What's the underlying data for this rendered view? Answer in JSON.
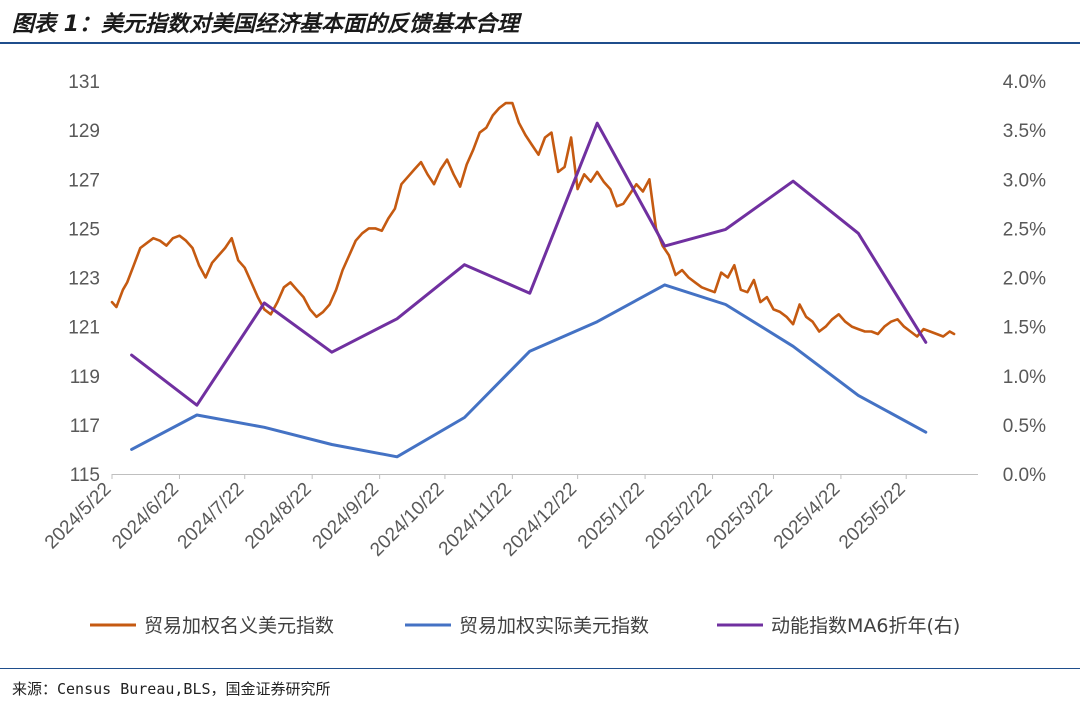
{
  "title": "图表 1：美元指数对美国经济基本面的反馈基本合理",
  "source": "来源：Census Bureau,BLS，国金证券研究所",
  "chart_data": {
    "type": "line",
    "left_axis": {
      "ticks": [
        "115",
        "117",
        "119",
        "121",
        "123",
        "125",
        "127",
        "129",
        "131"
      ],
      "min": 115,
      "max": 131
    },
    "right_axis": {
      "ticks": [
        "0.0%",
        "0.5%",
        "1.0%",
        "1.5%",
        "2.0%",
        "2.5%",
        "3.0%",
        "3.5%",
        "4.0%"
      ],
      "min": 0,
      "max": 4
    },
    "x_labels": [
      "2024/5/22",
      "2024/6/22",
      "2024/7/22",
      "2024/8/22",
      "2024/9/22",
      "2024/10/22",
      "2024/11/22",
      "2024/12/22",
      "2025/1/22",
      "2025/2/22",
      "2025/3/22",
      "2025/4/22",
      "2025/5/22"
    ],
    "grid": false,
    "legend_position": "bottom",
    "series": [
      {
        "name": "贸易加权名义美元指数",
        "axis": "left",
        "color": "#C55A11",
        "x": [
          "2024-05-22",
          "2024-05-24",
          "2024-05-27",
          "2024-05-29",
          "2024-06-01",
          "2024-06-04",
          "2024-06-07",
          "2024-06-10",
          "2024-06-13",
          "2024-06-16",
          "2024-06-19",
          "2024-06-22",
          "2024-06-25",
          "2024-06-28",
          "2024-07-01",
          "2024-07-04",
          "2024-07-07",
          "2024-07-10",
          "2024-07-13",
          "2024-07-16",
          "2024-07-19",
          "2024-07-22",
          "2024-07-25",
          "2024-07-28",
          "2024-07-31",
          "2024-08-03",
          "2024-08-06",
          "2024-08-09",
          "2024-08-12",
          "2024-08-15",
          "2024-08-18",
          "2024-08-21",
          "2024-08-24",
          "2024-08-27",
          "2024-08-30",
          "2024-09-02",
          "2024-09-05",
          "2024-09-08",
          "2024-09-11",
          "2024-09-14",
          "2024-09-17",
          "2024-09-20",
          "2024-09-23",
          "2024-09-26",
          "2024-09-29",
          "2024-10-02",
          "2024-10-05",
          "2024-10-08",
          "2024-10-11",
          "2024-10-14",
          "2024-10-17",
          "2024-10-20",
          "2024-10-23",
          "2024-10-26",
          "2024-10-29",
          "2024-11-01",
          "2024-11-04",
          "2024-11-07",
          "2024-11-10",
          "2024-11-13",
          "2024-11-16",
          "2024-11-19",
          "2024-11-22",
          "2024-11-25",
          "2024-11-28",
          "2024-12-01",
          "2024-12-04",
          "2024-12-07",
          "2024-12-10",
          "2024-12-13",
          "2024-12-16",
          "2024-12-19",
          "2024-12-22",
          "2024-12-25",
          "2024-12-28",
          "2024-12-31",
          "2025-01-03",
          "2025-01-06",
          "2025-01-09",
          "2025-01-12",
          "2025-01-15",
          "2025-01-18",
          "2025-01-21",
          "2025-01-24",
          "2025-01-27",
          "2025-01-30",
          "2025-02-02",
          "2025-02-05",
          "2025-02-08",
          "2025-02-11",
          "2025-02-14",
          "2025-02-17",
          "2025-02-20",
          "2025-02-23",
          "2025-02-26",
          "2025-03-01",
          "2025-03-04",
          "2025-03-07",
          "2025-03-10",
          "2025-03-13",
          "2025-03-16",
          "2025-03-19",
          "2025-03-22",
          "2025-03-25",
          "2025-03-28",
          "2025-03-31",
          "2025-04-03",
          "2025-04-06",
          "2025-04-09",
          "2025-04-12",
          "2025-04-15",
          "2025-04-18",
          "2025-04-21",
          "2025-04-24",
          "2025-04-27",
          "2025-04-30",
          "2025-05-03",
          "2025-05-06",
          "2025-05-09",
          "2025-05-12",
          "2025-05-15",
          "2025-05-18",
          "2025-05-21",
          "2025-05-24",
          "2025-05-27",
          "2025-05-30",
          "2025-06-02",
          "2025-06-05",
          "2025-06-08",
          "2025-06-11",
          "2025-06-13"
        ],
        "values": [
          122.0,
          121.8,
          122.5,
          122.8,
          123.5,
          124.2,
          124.4,
          124.6,
          124.5,
          124.3,
          124.6,
          124.7,
          124.5,
          124.2,
          123.5,
          123.0,
          123.6,
          123.9,
          124.2,
          124.6,
          123.7,
          123.4,
          122.8,
          122.2,
          121.7,
          121.5,
          122.0,
          122.6,
          122.8,
          122.5,
          122.2,
          121.7,
          121.4,
          121.6,
          121.9,
          122.5,
          123.3,
          123.9,
          124.5,
          124.8,
          125.0,
          125.0,
          124.9,
          125.4,
          125.8,
          126.8,
          127.1,
          127.4,
          127.7,
          127.2,
          126.8,
          127.4,
          127.8,
          127.2,
          126.7,
          127.6,
          128.2,
          128.9,
          129.1,
          129.6,
          129.9,
          130.1,
          130.1,
          129.3,
          128.8,
          128.4,
          128.0,
          128.7,
          128.9,
          127.3,
          127.5,
          128.7,
          126.6,
          127.2,
          126.9,
          127.3,
          126.9,
          126.6,
          125.9,
          126.0,
          126.4,
          126.8,
          126.5,
          127.0,
          125.0,
          124.3,
          123.9,
          123.1,
          123.3,
          123.0,
          122.8,
          122.6,
          122.5,
          122.4,
          123.2,
          123.0,
          123.5,
          122.5,
          122.4,
          122.9,
          122.0,
          122.2,
          121.7,
          121.6,
          121.4,
          121.1,
          121.9,
          121.4,
          121.2,
          120.8,
          121.0,
          121.3,
          121.5,
          121.2,
          121.0,
          120.9,
          120.8,
          120.8,
          120.7,
          121.0,
          121.2,
          121.3,
          121.0,
          120.8,
          120.6,
          120.9,
          120.8,
          120.7,
          120.6,
          120.8,
          120.7
        ]
      },
      {
        "name": "贸易加权实际美元指数",
        "axis": "left",
        "color": "#4472C4",
        "x": [
          "2024-05-31",
          "2024-06-30",
          "2024-07-31",
          "2024-08-31",
          "2024-09-30",
          "2024-10-31",
          "2024-11-30",
          "2024-12-31",
          "2025-01-31",
          "2025-02-28",
          "2025-03-31",
          "2025-04-30",
          "2025-05-31"
        ],
        "values": [
          116.0,
          117.4,
          116.9,
          116.2,
          115.7,
          117.3,
          120.0,
          121.2,
          122.7,
          121.9,
          120.2,
          118.2,
          116.7
        ]
      },
      {
        "name": "动能指数MA6折年(右)",
        "axis": "right",
        "color": "#7030A0",
        "x": [
          "2024-05-31",
          "2024-06-30",
          "2024-07-31",
          "2024-08-31",
          "2024-09-30",
          "2024-10-31",
          "2024-11-30",
          "2024-12-31",
          "2025-01-31",
          "2025-02-28",
          "2025-03-31",
          "2025-04-30",
          "2025-05-31"
        ],
        "values": [
          1.21,
          0.7,
          1.74,
          1.24,
          1.58,
          2.13,
          1.84,
          3.57,
          2.32,
          2.49,
          2.98,
          2.45,
          1.34
        ]
      }
    ]
  }
}
